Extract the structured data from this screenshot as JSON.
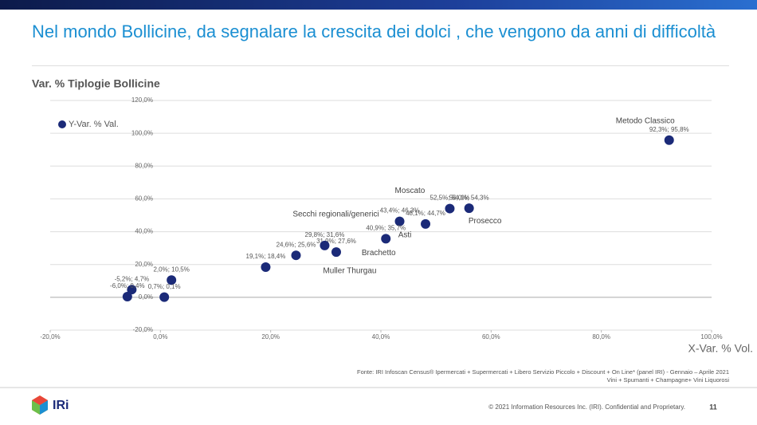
{
  "slide": {
    "title": "Nel mondo Bollicine, da segnalare la crescita dei dolci , che vengono da anni di difficoltà",
    "footnote": [
      "Fonte: IRI Infoscan Census® Ipermercati + Supermercati + Libero Servizio Piccolo + Discount + On Line* (panel IRI) - Gennaio – Aprile 2021",
      "Vini + Spumanti + Champagne+ Vini Liquorosi"
    ],
    "logo": "IRi",
    "copyright": "© 2021 Information Resources Inc. (IRI). Confidential and Proprietary.",
    "page": "11"
  },
  "chart_data": {
    "type": "scatter",
    "title": "Var. % Tiplogie Bollicine",
    "x_label": "X-Var. % Vol.",
    "legend": "top-left",
    "grid": true,
    "xlim": [
      -20,
      100
    ],
    "xticks": [
      {
        "value": -20,
        "label": "-20,0%"
      },
      {
        "value": 0,
        "label": "0,0%"
      },
      {
        "value": 20,
        "label": "20,0%"
      },
      {
        "value": 40,
        "label": "40,0%"
      },
      {
        "value": 60,
        "label": "60,0%"
      },
      {
        "value": 80,
        "label": "80,0%"
      },
      {
        "value": 100,
        "label": "100,0%"
      }
    ],
    "ylim": [
      -20,
      120
    ],
    "yticks": [
      {
        "value": -20,
        "label": "-20,0%"
      },
      {
        "value": 0,
        "label": "0,0%"
      },
      {
        "value": 20,
        "label": "20,0%"
      },
      {
        "value": 40,
        "label": "40,0%"
      },
      {
        "value": 60,
        "label": "60,0%"
      },
      {
        "value": 80,
        "label": "80,0%"
      },
      {
        "value": 100,
        "label": "100,0%"
      },
      {
        "value": 120,
        "label": "120,0%"
      }
    ],
    "series": [
      {
        "name": "Y-Var. % Val.",
        "color": "#1b2a78",
        "x": [
          92.3,
          52.5,
          56.0,
          43.4,
          48.1,
          40.9,
          31.9,
          29.8,
          24.6,
          19.1,
          2.0,
          -5.2,
          -6.0,
          0.7
        ],
        "values": [
          95.8,
          54.1,
          54.3,
          46.3,
          44.7,
          35.7,
          27.6,
          31.6,
          25.6,
          18.4,
          10.5,
          4.7,
          0.4,
          0.1
        ],
        "value_labels": [
          "92,3%; 95,8%",
          "52,5%; 54,1%",
          "56,0%; 54,3%",
          "43,4%; 46,3%",
          "48,1%; 44,7%",
          "40,9%; 35,7%",
          "31,9%; 27,6%",
          "29,8%; 31,6%",
          "24,6%; 25,6%",
          "19,1%; 18,4%",
          "2,0%; 10,5%",
          "-5,2%; 4,7%",
          "-6,0%; 0,4%",
          "0,7%; 0,1%"
        ],
        "point_names": [
          "Metodo Classico",
          "Moscato",
          "Prosecco",
          "Secchi regionali/generici",
          "Asti",
          "Brachetto",
          "Muller Thurgau",
          null,
          null,
          null,
          null,
          null,
          null,
          null
        ]
      }
    ]
  }
}
